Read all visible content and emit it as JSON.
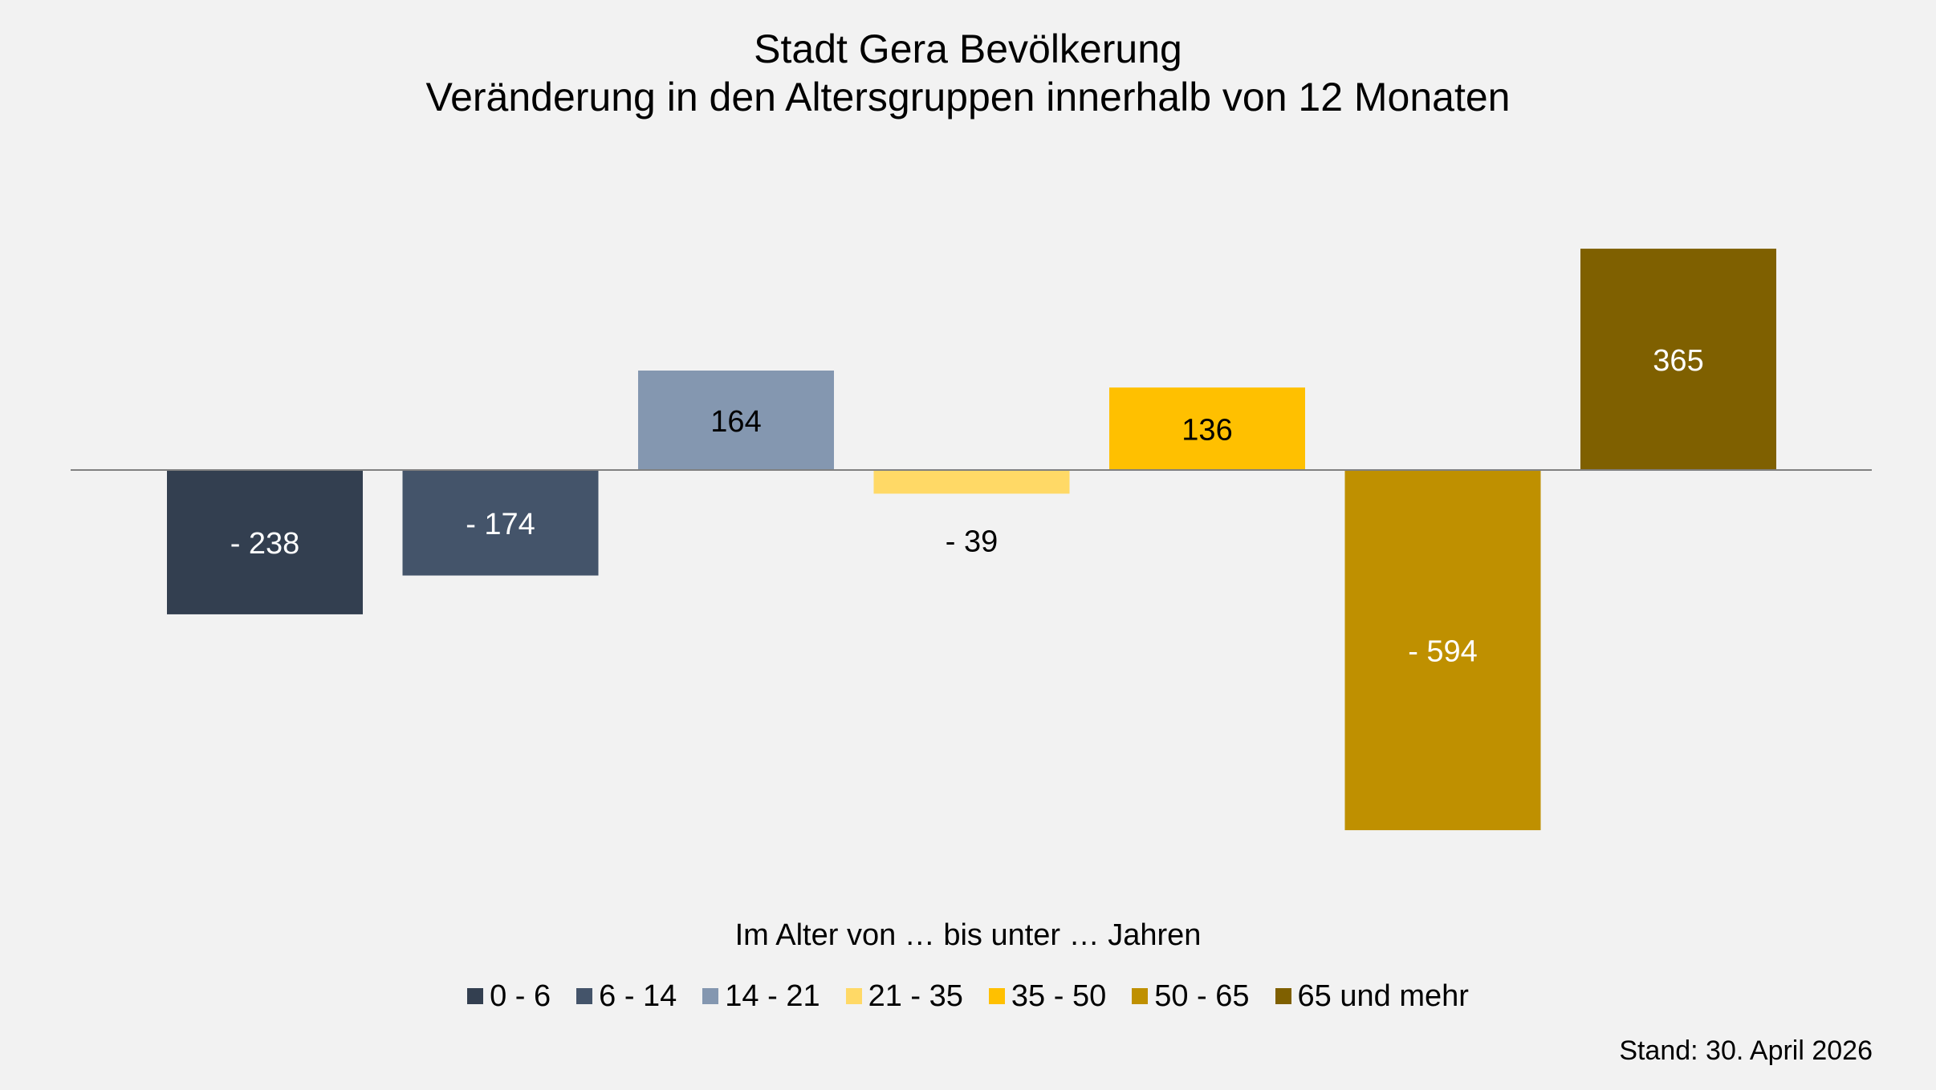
{
  "title_line1": "Stadt Gera Bevölkerung",
  "title_line2": "Veränderung in den Altersgruppen innerhalb von 12 Monaten",
  "legend_title": "Im Alter von … bis unter … Jahren",
  "footnote": "Stand: 30. April 2026",
  "chart_data": {
    "type": "bar",
    "title": "Stadt Gera Bevölkerung\nVeränderung in den Altersgruppen innerhalb von 12 Monaten",
    "legend_position": "bottom",
    "grid": false,
    "ylim": [
      -650,
      450
    ],
    "series": [
      {
        "name": "0 - 6",
        "value": -238,
        "label": "- 238",
        "color": "#333f50",
        "label_color": "#ffffff"
      },
      {
        "name": "6 - 14",
        "value": -174,
        "label": "- 174",
        "color": "#44546a",
        "label_color": "#ffffff"
      },
      {
        "name": "14 - 21",
        "value": 164,
        "label": "164",
        "color": "#8497b0",
        "label_color": "#000000"
      },
      {
        "name": "21 - 35",
        "value": -39,
        "label": "- 39",
        "color": "#ffd966",
        "label_color": "#000000"
      },
      {
        "name": "35 - 50",
        "value": 136,
        "label": "136",
        "color": "#ffc000",
        "label_color": "#000000"
      },
      {
        "name": "50 - 65",
        "value": -594,
        "label": "- 594",
        "color": "#bf9000",
        "label_color": "#ffffff"
      },
      {
        "name": "65 und mehr",
        "value": 365,
        "label": "365",
        "color": "#7f6000",
        "label_color": "#ffffff"
      }
    ]
  }
}
